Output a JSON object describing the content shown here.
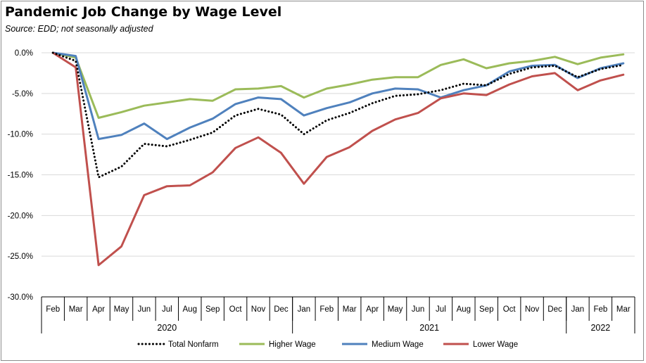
{
  "chart_data": {
    "type": "line",
    "title": "Pandemic Job Change by Wage Level",
    "subtitle": "Source:  EDD; not seasonally adjusted",
    "xlabel": "",
    "ylabel": "",
    "ylim": [
      -30,
      0
    ],
    "y_ticks": [
      "0.0%",
      "-5.0%",
      "-10.0%",
      "-15.0%",
      "-20.0%",
      "-25.0%",
      "-30.0%"
    ],
    "y_tick_values": [
      0,
      -5,
      -10,
      -15,
      -20,
      -25,
      -30
    ],
    "grid": true,
    "legend_position": "bottom",
    "categories": [
      "Feb",
      "Mar",
      "Apr",
      "May",
      "Jun",
      "Jul",
      "Aug",
      "Sep",
      "Oct",
      "Nov",
      "Dec",
      "Jan",
      "Feb",
      "Mar",
      "Apr",
      "May",
      "Jun",
      "Jul",
      "Aug",
      "Sep",
      "Oct",
      "Nov",
      "Dec",
      "Jan",
      "Feb",
      "Mar"
    ],
    "year_groups": [
      {
        "label": "2020",
        "start": 0,
        "end": 10
      },
      {
        "label": "2021",
        "start": 11,
        "end": 22
      },
      {
        "label": "2022",
        "start": 23,
        "end": 25
      }
    ],
    "series": [
      {
        "name": "Total Nonfarm",
        "color": "#000000",
        "style": "dotted",
        "values": [
          0,
          -1.0,
          -15.3,
          -14.0,
          -11.2,
          -11.5,
          -10.7,
          -9.8,
          -7.7,
          -6.9,
          -7.6,
          -10.0,
          -8.3,
          -7.4,
          -6.2,
          -5.3,
          -5.1,
          -4.6,
          -3.8,
          -4.0,
          -2.6,
          -1.8,
          -1.6,
          -3.0,
          -2.0,
          -1.5
        ]
      },
      {
        "name": "Higher Wage",
        "color": "#9bbb59",
        "style": "solid",
        "values": [
          0,
          -0.6,
          -8.0,
          -7.3,
          -6.5,
          -6.1,
          -5.7,
          -5.9,
          -4.5,
          -4.4,
          -4.1,
          -5.5,
          -4.4,
          -3.9,
          -3.3,
          -3.0,
          -3.0,
          -1.5,
          -0.8,
          -1.9,
          -1.3,
          -1.0,
          -0.5,
          -1.4,
          -0.6,
          -0.2
        ]
      },
      {
        "name": "Medium Wage",
        "color": "#4f81bd",
        "style": "solid",
        "values": [
          0,
          -0.4,
          -10.6,
          -10.1,
          -8.7,
          -10.6,
          -9.2,
          -8.1,
          -6.3,
          -5.5,
          -5.7,
          -7.7,
          -6.8,
          -6.1,
          -5.0,
          -4.4,
          -4.5,
          -5.5,
          -4.6,
          -4.0,
          -2.3,
          -1.6,
          -1.5,
          -3.1,
          -1.9,
          -1.3
        ]
      },
      {
        "name": "Lower Wage",
        "color": "#c0504d",
        "style": "solid",
        "values": [
          0,
          -1.8,
          -26.1,
          -23.8,
          -17.5,
          -16.4,
          -16.3,
          -14.7,
          -11.7,
          -10.4,
          -12.3,
          -16.1,
          -12.8,
          -11.6,
          -9.6,
          -8.2,
          -7.4,
          -5.6,
          -5.0,
          -5.2,
          -3.9,
          -2.9,
          -2.5,
          -4.6,
          -3.4,
          -2.7
        ]
      }
    ]
  }
}
